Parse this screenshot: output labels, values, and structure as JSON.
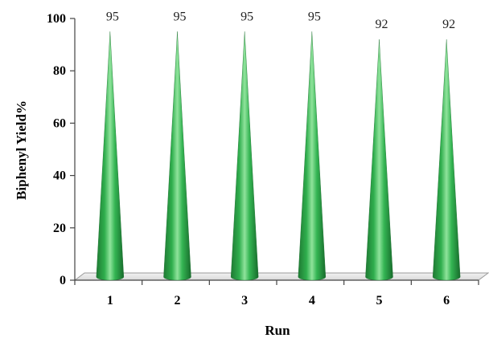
{
  "chart_data": {
    "type": "bar",
    "bar_shape": "cone",
    "categories": [
      "1",
      "2",
      "3",
      "4",
      "5",
      "6"
    ],
    "series": [
      {
        "values": [
          95,
          95,
          95,
          95,
          92,
          92
        ],
        "color": "#2aa84a"
      }
    ],
    "data_labels": [
      "95",
      "95",
      "95",
      "95",
      "92",
      "92"
    ],
    "xlabel": "Run",
    "ylabel": "Biphenyl Yield%",
    "ylim": [
      0,
      100
    ],
    "yticks": [
      "0",
      "20",
      "40",
      "60",
      "80",
      "100"
    ],
    "grid": false,
    "legend": "none"
  }
}
